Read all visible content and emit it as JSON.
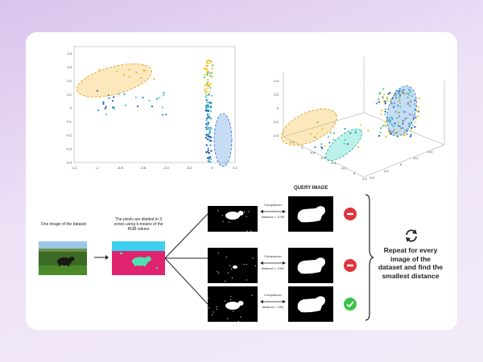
{
  "charts": {
    "plot2d": {
      "type": "scatter",
      "x_ticks": [
        "-1.2",
        "-1",
        "-0.8",
        "-0.6",
        "-0.4",
        "-0.2",
        "0",
        "0.2"
      ],
      "y_ticks": [
        "0.4",
        "0.3",
        "0.2",
        "0.1",
        "0",
        "-0.1",
        "-0.2",
        "-0.3",
        "-0.4"
      ],
      "xlim": [
        -1.2,
        0.2
      ],
      "ylim": [
        -0.4,
        0.45
      ],
      "clusters": [
        {
          "name": "orange-cluster",
          "color": "#f5b324"
        },
        {
          "name": "blue-cluster",
          "color": "#5b9be0"
        }
      ]
    },
    "plot3d": {
      "type": "scatter",
      "axis_ticks_left": [
        "0.4",
        "0.2",
        "0",
        "-0.2",
        "-0.4"
      ],
      "axis_ticks_front": [
        "-1.2",
        "-1",
        "-0.8",
        "-0.6",
        "-0.4",
        "-0.2",
        "0",
        "0.2"
      ],
      "axis_ticks_right": [
        "0.4",
        "0.2",
        "0",
        "-0.2",
        "-0.4"
      ],
      "clusters": [
        {
          "name": "orange-cluster",
          "color": "#f5b324"
        },
        {
          "name": "teal-cluster",
          "color": "#3fd6c4"
        },
        {
          "name": "blue-cluster",
          "color": "#5b9be0"
        }
      ]
    }
  },
  "workflow": {
    "dataset_label": "One image of the dataset",
    "kmeans_label": "The pixels are divided in 3 zones using k-means of the RGB values",
    "query_title": "QUERY IMAGE",
    "comparisons": [
      {
        "comparison": "Comparison",
        "distance": "distance = 1239",
        "result": "reject"
      },
      {
        "comparison": "Comparison",
        "distance": "distance = 1361",
        "result": "reject"
      },
      {
        "comparison": "Comparison",
        "distance": "distance = 359",
        "result": "accept"
      }
    ],
    "repeat_text": "Repeat for every image of the dataset and find the smallest distance",
    "colors": {
      "reject": "#e0343c",
      "accept": "#3cc24a",
      "seg_sky": "#3cd0f0",
      "seg_ground": "#e0236e",
      "seg_object": "#4fe0b0"
    }
  }
}
